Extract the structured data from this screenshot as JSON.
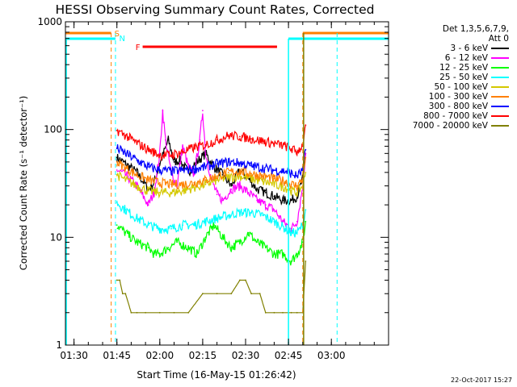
{
  "chart_data": {
    "type": "line",
    "title": "HESSI Observing Summary Count Rates, Corrected",
    "xlabel": "Start Time (16-May-15 01:26:42)",
    "ylabel": "Corrected Count Rate (s⁻¹ detector⁻¹)",
    "y_scale": "log",
    "ylim": [
      1,
      1000
    ],
    "xlim_min": [
      87,
      200
    ],
    "x_ticks": [
      {
        "label": "01:30",
        "min": 90
      },
      {
        "label": "01:45",
        "min": 105
      },
      {
        "label": "02:00",
        "min": 120
      },
      {
        "label": "02:15",
        "min": 135
      },
      {
        "label": "02:30",
        "min": 150
      },
      {
        "label": "02:45",
        "min": 165
      },
      {
        "label": "03:00",
        "min": 180
      }
    ],
    "y_ticks": [
      {
        "label": "1",
        "value": 1
      },
      {
        "label": "10",
        "value": 10
      },
      {
        "label": "100",
        "value": 100
      },
      {
        "label": "1000",
        "value": 1000
      }
    ],
    "legend_header": [
      "Det 1,3,5,6,7,9,",
      "Att 0"
    ],
    "legend_placement": "right",
    "series": [
      {
        "name": "3 - 6 keV",
        "color": "#000000",
        "x": [
          105,
          108,
          112,
          116,
          118,
          120,
          123,
          125,
          127,
          130,
          133,
          136,
          139,
          142,
          145,
          148,
          151,
          154,
          157,
          160,
          163,
          166,
          168,
          170,
          171
        ],
        "y": [
          55,
          48,
          40,
          28,
          32,
          48,
          80,
          50,
          52,
          40,
          50,
          60,
          45,
          38,
          30,
          42,
          35,
          28,
          26,
          24,
          22,
          22,
          24,
          35,
          60
        ]
      },
      {
        "name": "6 - 12 keV",
        "color": "#ff00ff",
        "x": [
          105,
          108,
          112,
          116,
          118,
          120,
          121,
          122,
          124,
          126,
          128,
          130,
          132,
          134,
          135,
          136,
          138,
          140,
          142,
          145,
          148,
          151,
          154,
          157,
          160,
          163,
          166,
          168,
          170,
          171
        ],
        "y": [
          42,
          38,
          30,
          20,
          26,
          60,
          150,
          80,
          40,
          30,
          70,
          45,
          38,
          80,
          150,
          60,
          35,
          25,
          22,
          28,
          30,
          26,
          22,
          20,
          18,
          14,
          12,
          14,
          30,
          60
        ]
      },
      {
        "name": "12 - 25 keV",
        "color": "#00ff00",
        "x": [
          105,
          108,
          112,
          116,
          118,
          120,
          123,
          126,
          130,
          133,
          136,
          139,
          142,
          145,
          148,
          151,
          154,
          157,
          160,
          163,
          166,
          168,
          170,
          171
        ],
        "y": [
          13,
          11,
          9,
          8,
          7,
          7,
          8,
          9,
          8,
          7,
          10,
          13,
          10,
          8,
          9,
          11,
          9,
          8,
          7,
          7,
          6,
          7,
          9,
          14
        ]
      },
      {
        "name": "25 - 50 keV",
        "color": "#00ffff",
        "x": [
          105,
          108,
          112,
          116,
          120,
          124,
          128,
          132,
          136,
          140,
          144,
          148,
          152,
          156,
          160,
          164,
          166,
          168,
          170,
          171
        ],
        "y": [
          21,
          18,
          15,
          13,
          12,
          12,
          13,
          13,
          14,
          15,
          16,
          17,
          17,
          16,
          14,
          12,
          11,
          11,
          13,
          18
        ]
      },
      {
        "name": "50 - 100 keV",
        "color": "#d4c800",
        "x": [
          105,
          108,
          112,
          116,
          120,
          124,
          128,
          132,
          136,
          140,
          144,
          148,
          152,
          156,
          160,
          164,
          166,
          168,
          170,
          171
        ],
        "y": [
          38,
          34,
          30,
          27,
          26,
          26,
          27,
          29,
          31,
          34,
          36,
          37,
          35,
          33,
          31,
          29,
          27,
          26,
          30,
          40
        ]
      },
      {
        "name": "100 - 300 keV",
        "color": "#ff8000",
        "x": [
          105,
          108,
          112,
          116,
          120,
          124,
          128,
          132,
          136,
          140,
          144,
          148,
          152,
          156,
          160,
          164,
          166,
          168,
          170,
          171
        ],
        "y": [
          50,
          44,
          38,
          34,
          32,
          31,
          31,
          32,
          34,
          37,
          40,
          41,
          39,
          37,
          35,
          33,
          31,
          30,
          35,
          55
        ]
      },
      {
        "name": "300 - 800 keV",
        "color": "#0000ff",
        "x": [
          105,
          108,
          112,
          116,
          120,
          124,
          128,
          132,
          136,
          140,
          144,
          148,
          152,
          156,
          160,
          164,
          166,
          168,
          170,
          171
        ],
        "y": [
          67,
          60,
          52,
          45,
          42,
          41,
          42,
          43,
          45,
          48,
          50,
          49,
          46,
          44,
          42,
          41,
          39,
          37,
          42,
          65
        ]
      },
      {
        "name": "800 - 7000 keV",
        "color": "#ff0000",
        "x": [
          105,
          108,
          112,
          116,
          120,
          124,
          128,
          132,
          136,
          140,
          144,
          148,
          152,
          156,
          160,
          164,
          166,
          168,
          170,
          171
        ],
        "y": [
          98,
          88,
          75,
          65,
          58,
          58,
          62,
          68,
          72,
          80,
          88,
          86,
          82,
          78,
          74,
          70,
          66,
          62,
          72,
          110
        ]
      },
      {
        "name": "7000 - 20000 keV",
        "color": "#808000",
        "x": [
          105,
          106,
          107,
          108,
          110,
          112,
          115,
          120,
          125,
          130,
          135,
          140,
          145,
          148,
          150,
          152,
          155,
          157,
          160,
          163,
          166,
          168,
          170,
          171
        ],
        "y": [
          4,
          4,
          3,
          3,
          2,
          2,
          2,
          2,
          2,
          2,
          3,
          3,
          3,
          4,
          4,
          3,
          3,
          2,
          2,
          2,
          2,
          2,
          2,
          6
        ]
      }
    ],
    "annotations": [
      {
        "text": "S",
        "color": "#ff8000"
      },
      {
        "text": "N",
        "color": "#00ffff"
      },
      {
        "text": "F",
        "color": "#ff0000"
      }
    ],
    "timestamp": "22-Oct-2017 15:27"
  }
}
